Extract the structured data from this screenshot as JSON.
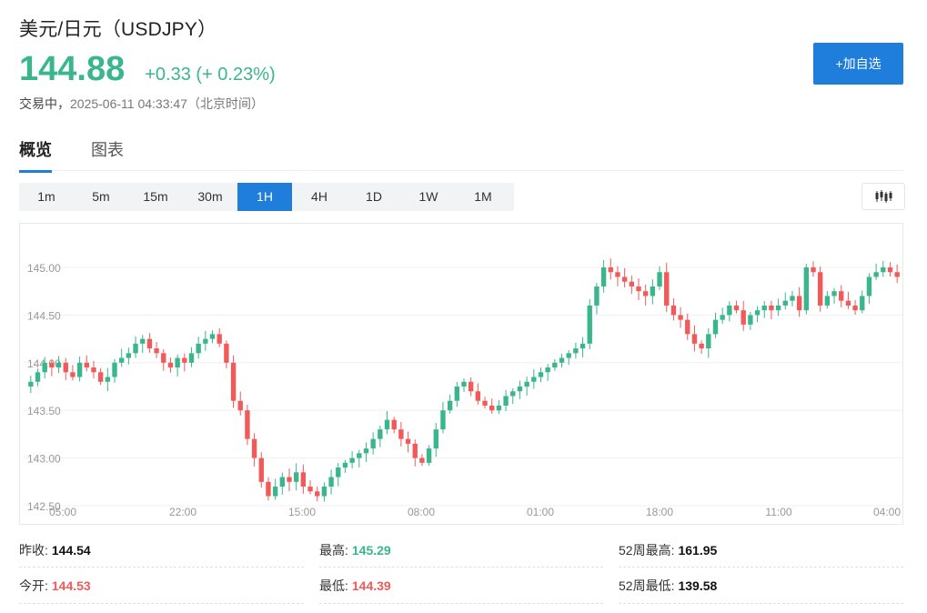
{
  "header": {
    "title": "美元/日元（USDJPY）",
    "price": "144.88",
    "change": "+0.33 (+ 0.23%)",
    "status_label": "交易中，",
    "timestamp": "2025-06-11 04:33:47（北京时间）",
    "add_button": "+加自选"
  },
  "tabs": [
    {
      "label": "概览",
      "active": true
    },
    {
      "label": "图表",
      "active": false
    }
  ],
  "periods": [
    {
      "label": "1m",
      "active": false
    },
    {
      "label": "5m",
      "active": false
    },
    {
      "label": "15m",
      "active": false
    },
    {
      "label": "30m",
      "active": false
    },
    {
      "label": "1H",
      "active": true
    },
    {
      "label": "4H",
      "active": false
    },
    {
      "label": "1D",
      "active": false
    },
    {
      "label": "1W",
      "active": false
    },
    {
      "label": "1M",
      "active": false
    }
  ],
  "chart_type_icon": "candlestick-icon",
  "colors": {
    "up": "#3ab68c",
    "down": "#f25a5a",
    "accent": "#1f7ddb"
  },
  "chart_data": {
    "type": "candlestick",
    "ylim": [
      142.5,
      145.29
    ],
    "y_ticks": [
      "145.00",
      "144.50",
      "144.00",
      "143.50",
      "143.00",
      "142.50"
    ],
    "y_tick_values": [
      145.0,
      144.5,
      144.0,
      143.5,
      143.0,
      142.5
    ],
    "x_ticks": [
      "05:00",
      "22:00",
      "15:00",
      "08:00",
      "01:00",
      "18:00",
      "11:00",
      "04:00"
    ],
    "close_series": [
      143.8,
      143.9,
      144.0,
      143.95,
      144.0,
      143.9,
      143.85,
      144.0,
      143.95,
      143.9,
      143.8,
      143.85,
      144.0,
      144.05,
      144.1,
      144.2,
      144.25,
      144.15,
      144.1,
      144.0,
      143.95,
      144.05,
      144.0,
      144.1,
      144.2,
      144.25,
      144.3,
      144.2,
      144.0,
      143.6,
      143.5,
      143.2,
      143.0,
      142.75,
      142.6,
      142.7,
      142.8,
      142.75,
      142.85,
      142.7,
      142.65,
      142.6,
      142.7,
      142.8,
      142.9,
      142.95,
      143.0,
      143.05,
      143.1,
      143.2,
      143.3,
      143.4,
      143.3,
      143.2,
      143.15,
      143.0,
      142.95,
      143.1,
      143.3,
      143.5,
      143.6,
      143.75,
      143.8,
      143.7,
      143.6,
      143.55,
      143.5,
      143.55,
      143.65,
      143.7,
      143.75,
      143.8,
      143.85,
      143.9,
      143.95,
      144.0,
      144.05,
      144.1,
      144.15,
      144.2,
      144.6,
      144.8,
      145.0,
      144.95,
      144.9,
      144.85,
      144.8,
      144.75,
      144.7,
      144.8,
      144.95,
      144.6,
      144.5,
      144.45,
      144.3,
      144.2,
      144.15,
      144.3,
      144.45,
      144.5,
      144.6,
      144.55,
      144.4,
      144.5,
      144.55,
      144.6,
      144.55,
      144.6,
      144.65,
      144.7,
      144.55,
      145.0,
      144.95,
      144.6,
      144.7,
      144.75,
      144.65,
      144.6,
      144.55,
      144.7,
      144.9,
      144.95,
      145.0,
      144.95,
      144.9
    ]
  },
  "stats": [
    {
      "label": "昨收:",
      "value": "144.54",
      "color": "black"
    },
    {
      "label": "最高:",
      "value": "145.29",
      "color": "green"
    },
    {
      "label": "52周最高:",
      "value": "161.95",
      "color": "black"
    },
    {
      "label": "今开:",
      "value": "144.53",
      "color": "red"
    },
    {
      "label": "最低:",
      "value": "144.39",
      "color": "red"
    },
    {
      "label": "52周最低:",
      "value": "139.58",
      "color": "black"
    }
  ]
}
